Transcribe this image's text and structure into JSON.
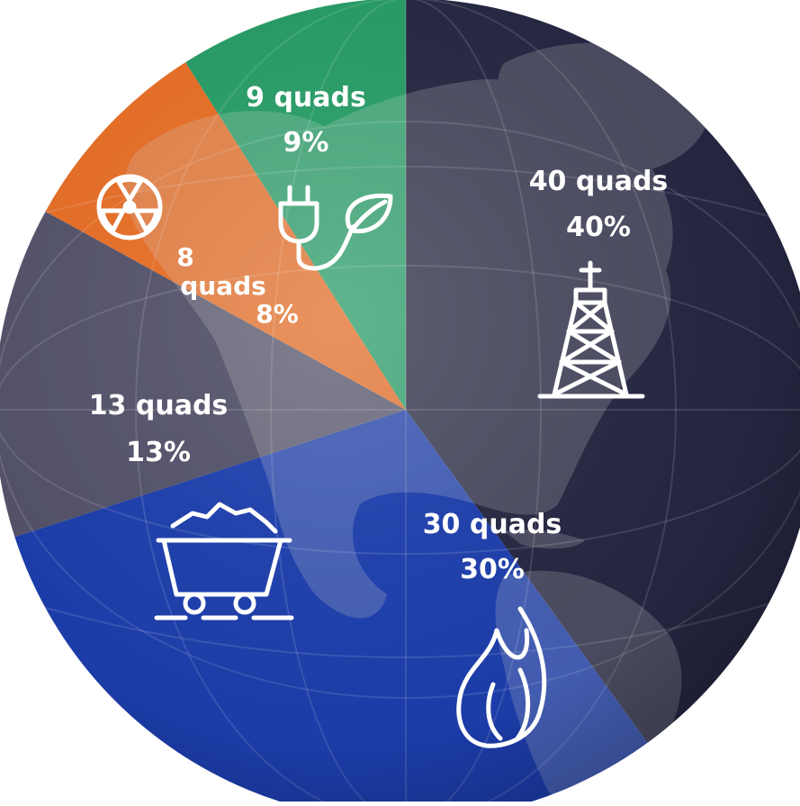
{
  "chart_data": {
    "type": "pie",
    "unit": "quads",
    "slices": [
      {
        "key": "oil",
        "value": 40,
        "label": "40 quads",
        "percent": "40%",
        "color": "#262743",
        "icon": "oil-derrick-icon"
      },
      {
        "key": "gas",
        "value": 30,
        "label": "30 quads",
        "percent": "30%",
        "color": "#1d3fb0",
        "icon": "flame-icon"
      },
      {
        "key": "coal",
        "value": 13,
        "label": "13 quads",
        "percent": "13%",
        "color": "#55546c",
        "icon": "coal-cart-icon"
      },
      {
        "key": "nuclear",
        "value": 8,
        "label_lines": [
          "8",
          "quads"
        ],
        "percent": "8%",
        "color": "#ec7026",
        "icon": "radiation-icon"
      },
      {
        "key": "renewable",
        "value": 9,
        "label": "9 quads",
        "percent": "9%",
        "color": "#27a068",
        "icon": "plug-leaf-icon"
      }
    ]
  }
}
